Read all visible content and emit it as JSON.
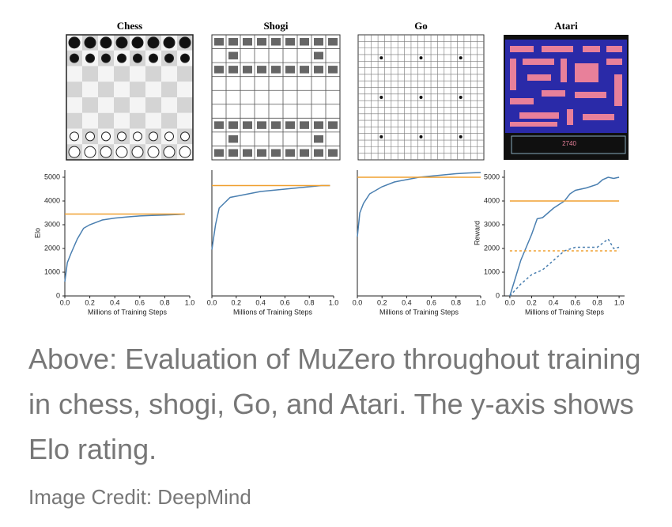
{
  "chart_data": [
    {
      "type": "line",
      "title": "Chess",
      "ylabel": "Elo",
      "xlabel": "Millions of Training Steps",
      "xlim": [
        0,
        1
      ],
      "xticks": [
        {
          "value": 0,
          "label": "0.0"
        },
        0.2,
        0.4,
        0.6,
        0.8,
        {
          "value": 1,
          "label": "1.0"
        }
      ],
      "ylim": [
        0,
        5300
      ],
      "yticks": [
        0,
        1000,
        2000,
        3000,
        4000,
        5000
      ],
      "series": [
        {
          "color": "#4a7fb0",
          "x": [
            0,
            0.02,
            0.05,
            0.1,
            0.15,
            0.2,
            0.3,
            0.4,
            0.5,
            0.6,
            0.7,
            0.8,
            0.9,
            0.96
          ],
          "values": [
            600,
            1400,
            1800,
            2400,
            2850,
            3000,
            3200,
            3280,
            3330,
            3370,
            3390,
            3410,
            3430,
            3450
          ]
        },
        {
          "color": "#f0a030",
          "x": [
            0,
            0.96
          ],
          "values": [
            3450,
            3450
          ]
        }
      ]
    },
    {
      "type": "line",
      "title": "Shogi",
      "xlabel": "Millions of Training Steps",
      "xlim": [
        0,
        1
      ],
      "xticks": [
        {
          "value": 0,
          "label": "0.0"
        },
        0.2,
        0.4,
        0.6,
        0.8,
        {
          "value": 1,
          "label": "1.0"
        }
      ],
      "ylim": [
        0,
        5300
      ],
      "series": [
        {
          "color": "#4a7fb0",
          "x": [
            0,
            0.03,
            0.06,
            0.1,
            0.15,
            0.2,
            0.3,
            0.4,
            0.5,
            0.6,
            0.7,
            0.8,
            0.9,
            0.97
          ],
          "values": [
            1950,
            3000,
            3700,
            3900,
            4150,
            4200,
            4300,
            4400,
            4450,
            4500,
            4550,
            4600,
            4650,
            4650
          ]
        },
        {
          "color": "#f0a030",
          "x": [
            0,
            0.97
          ],
          "values": [
            4650,
            4650
          ]
        }
      ]
    },
    {
      "type": "line",
      "title": "Go",
      "xlabel": "Millions of Training Steps",
      "xlim": [
        0,
        1
      ],
      "xticks": [
        {
          "value": 0,
          "label": "0.0"
        },
        0.2,
        0.4,
        0.6,
        0.8,
        {
          "value": 1,
          "label": "1.0"
        }
      ],
      "ylim": [
        0,
        5300
      ],
      "series": [
        {
          "color": "#4a7fb0",
          "x": [
            0,
            0.02,
            0.05,
            0.1,
            0.2,
            0.3,
            0.4,
            0.5,
            0.6,
            0.7,
            0.8,
            0.9,
            1.0
          ],
          "values": [
            2500,
            3500,
            3900,
            4300,
            4600,
            4800,
            4900,
            5000,
            5050,
            5100,
            5150,
            5180,
            5200
          ]
        },
        {
          "color": "#f0a030",
          "x": [
            0,
            1.0
          ],
          "values": [
            5000,
            5000
          ]
        }
      ]
    },
    {
      "type": "line",
      "title": "Atari",
      "ylabel": "Reward",
      "xlabel": "Millions of Training Steps",
      "xlim": [
        -0.05,
        1.05
      ],
      "xticks": [
        {
          "value": 0,
          "label": "0.0"
        },
        0.2,
        0.4,
        0.6,
        0.8,
        {
          "value": 1,
          "label": "1.0"
        }
      ],
      "ylim": [
        0,
        5300
      ],
      "yticks": [
        0,
        1000,
        2000,
        3000,
        4000,
        5000
      ],
      "series": [
        {
          "color": "#4a7fb0",
          "x": [
            0,
            0.1,
            0.2,
            0.25,
            0.3,
            0.4,
            0.5,
            0.55,
            0.6,
            0.7,
            0.8,
            0.85,
            0.9,
            0.95,
            1.0
          ],
          "values": [
            0,
            1500,
            2600,
            3250,
            3300,
            3700,
            4000,
            4300,
            4450,
            4550,
            4700,
            4900,
            5000,
            4950,
            5000
          ]
        },
        {
          "color": "#4a7fb0",
          "dashed": true,
          "x": [
            0,
            0.1,
            0.2,
            0.3,
            0.4,
            0.5,
            0.6,
            0.7,
            0.8,
            0.9,
            0.95,
            1.0
          ],
          "values": [
            0,
            500,
            900,
            1100,
            1500,
            1900,
            2050,
            2050,
            2050,
            2400,
            2000,
            2050
          ]
        },
        {
          "color": "#f0a030",
          "x": [
            0,
            1.0
          ],
          "values": [
            4000,
            4000
          ]
        },
        {
          "color": "#f0a030",
          "dashed": true,
          "x": [
            0,
            1.0
          ],
          "values": [
            1900,
            1900
          ]
        }
      ]
    }
  ],
  "atari_score": "2740",
  "caption": "Above: Evaluation of MuZero throughout training in chess, shogi, Go, and Atari. The y-axis shows Elo rating.",
  "credit": "Image Credit: DeepMind"
}
